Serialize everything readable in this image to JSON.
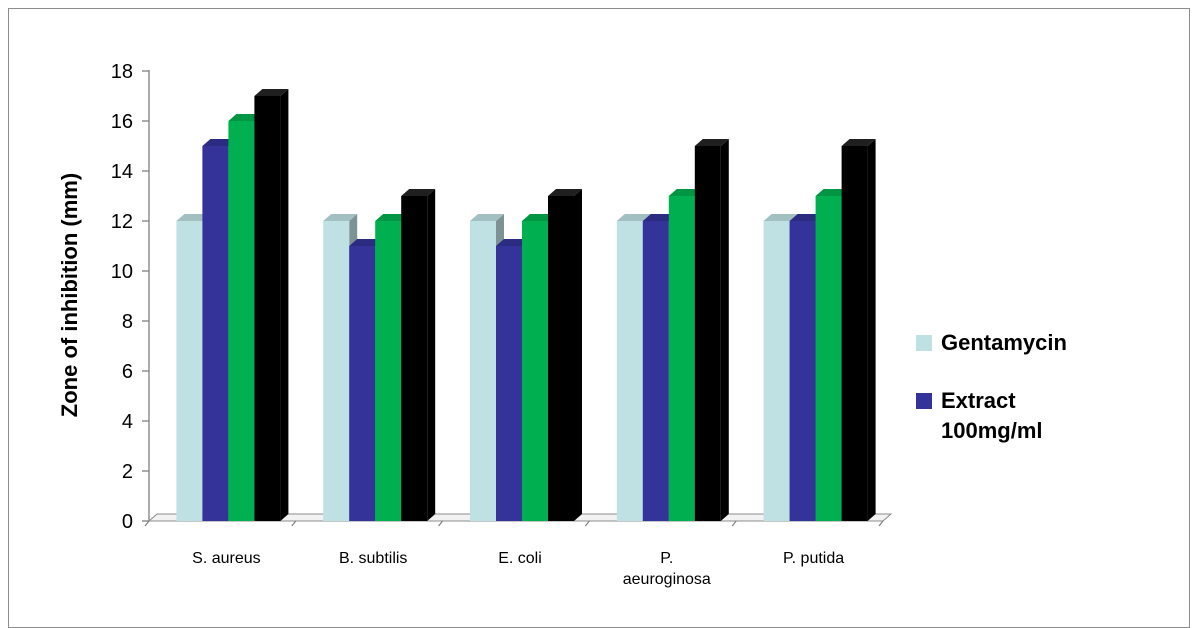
{
  "chart_data": {
    "type": "bar",
    "title": "",
    "xlabel": "",
    "ylabel": "Zone of inhibition (mm)",
    "ylim": [
      0,
      18
    ],
    "yticks": [
      0,
      2,
      4,
      6,
      8,
      10,
      12,
      14,
      16,
      18
    ],
    "categories": [
      [
        "S. aureus"
      ],
      [
        "B. subtilis"
      ],
      [
        "E. coli"
      ],
      [
        "P.",
        "aeuroginosa"
      ],
      [
        "P. putida"
      ]
    ],
    "series": [
      {
        "name": "Gentamycin",
        "color": "#bfe1e4",
        "values": [
          12,
          12,
          12,
          12,
          12
        ]
      },
      {
        "name": "Extract 100mg/ml",
        "legend_lines": [
          "Extract",
          "100mg/ml"
        ],
        "color": "#333399",
        "values": [
          15,
          11,
          11,
          12,
          12
        ]
      },
      {
        "color": "#00b050",
        "values": [
          16,
          12,
          12,
          13,
          13
        ]
      },
      {
        "color": "#000000",
        "values": [
          17,
          13,
          13,
          15,
          15
        ]
      }
    ],
    "legend": {
      "position": "right"
    },
    "grid": false,
    "style": "3d-column"
  }
}
